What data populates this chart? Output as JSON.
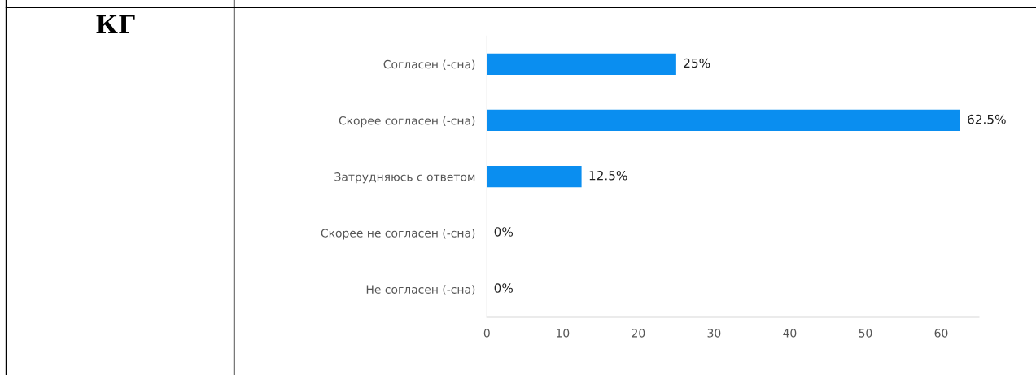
{
  "chart_data": {
    "type": "bar",
    "orientation": "horizontal",
    "categories": [
      "Согласен (-сна)",
      "Скорее согласен (-сна)",
      "Затрудняюсь с ответом",
      "Скорее не согласен (-сна)",
      "Не согласен (-сна)"
    ],
    "values": [
      25,
      62.5,
      12.5,
      0,
      0
    ],
    "value_labels": [
      "25%",
      "62.5%",
      "12.5%",
      "0%",
      "0%"
    ],
    "color": "#0a8ef0",
    "xlim": [
      0,
      65
    ],
    "xticks": [
      0,
      10,
      20,
      30,
      40,
      50,
      60
    ],
    "grid": false,
    "annotations": [
      "КГ"
    ]
  }
}
